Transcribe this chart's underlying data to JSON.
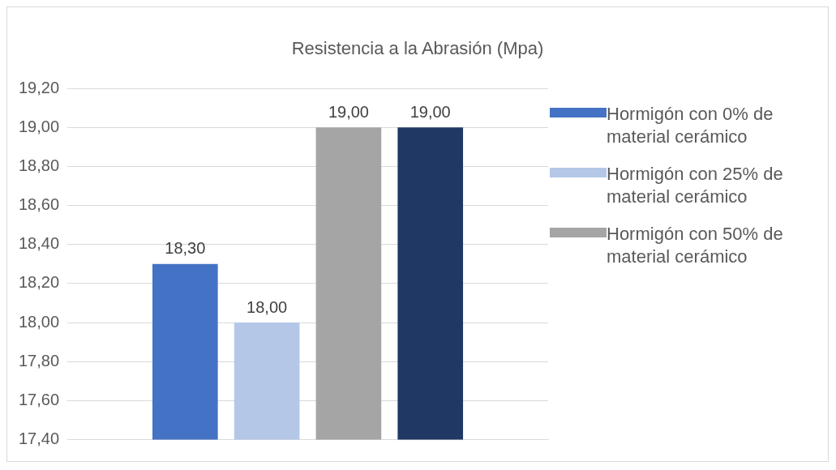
{
  "chart_data": {
    "type": "bar",
    "title": "Resistencia a la Abrasión (Mpa)",
    "categories": [
      null
    ],
    "series": [
      {
        "name": "Hormigón con 0% de material cerámico",
        "color": "#4472c4",
        "values": [
          18.3
        ],
        "value_labels": [
          "18,30"
        ]
      },
      {
        "name": "Hormigón con 25% de material cerámico",
        "color": "#b4c7e7",
        "values": [
          18.0
        ],
        "value_labels": [
          "18,00"
        ]
      },
      {
        "name": "Hormigón con 50% de material cerámico",
        "color": "#a5a5a5",
        "values": [
          19.0
        ],
        "value_labels": [
          "19,00"
        ]
      },
      {
        "color": "#203864",
        "values": [
          19.0
        ],
        "value_labels": [
          "19,00"
        ]
      }
    ],
    "ylim": [
      17.4,
      19.2
    ],
    "yticks": [
      {
        "value": 17.4,
        "label": "17,40"
      },
      {
        "value": 17.6,
        "label": "17,60"
      },
      {
        "value": 17.8,
        "label": "17,80"
      },
      {
        "value": 18.0,
        "label": "18,00"
      },
      {
        "value": 18.2,
        "label": "18,20"
      },
      {
        "value": 18.4,
        "label": "18,40"
      },
      {
        "value": 18.6,
        "label": "18,60"
      },
      {
        "value": 18.8,
        "label": "18,80"
      },
      {
        "value": 19.0,
        "label": "19,00"
      },
      {
        "value": 19.2,
        "label": "19,20"
      }
    ],
    "grid": "y",
    "legend": "right"
  }
}
